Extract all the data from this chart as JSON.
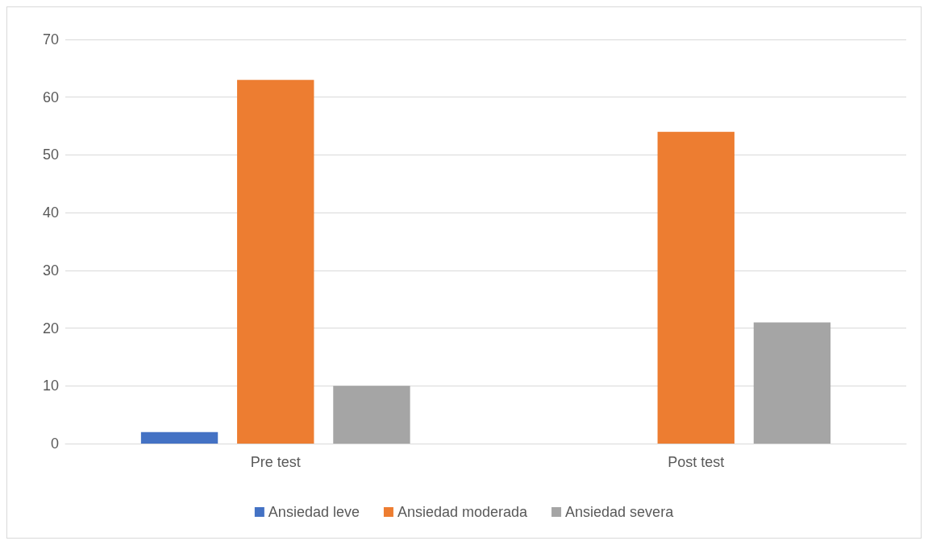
{
  "chart_data": {
    "type": "bar",
    "categories": [
      "Pre test",
      "Post test"
    ],
    "series": [
      {
        "name": "Ansiedad leve",
        "color": "#4472c4",
        "values": [
          2,
          0
        ]
      },
      {
        "name": "Ansiedad moderada",
        "color": "#ed7d31",
        "values": [
          63,
          54
        ]
      },
      {
        "name": "Ansiedad severa",
        "color": "#a5a5a5",
        "values": [
          10,
          21
        ]
      }
    ],
    "ylim": [
      0,
      70
    ],
    "yticks": [
      0,
      10,
      20,
      30,
      40,
      50,
      60,
      70
    ],
    "grid": "y",
    "legend": "bottom"
  }
}
